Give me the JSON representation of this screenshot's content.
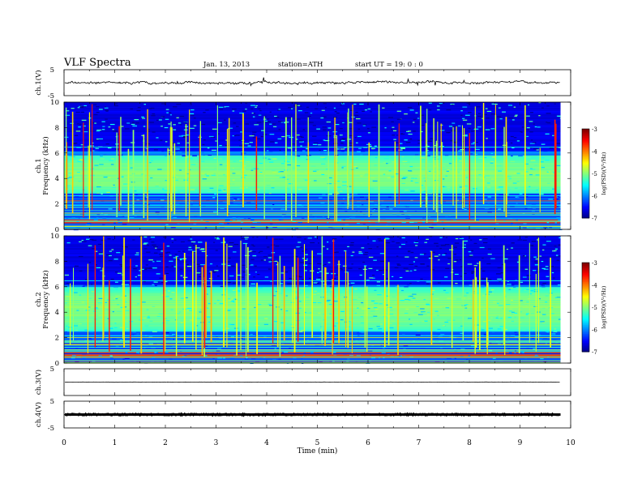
{
  "header": {
    "title": "VLF  Spectra",
    "date": "Jan. 13, 2013",
    "station": "station=ATH",
    "start": "start  UT =   19: 0  : 0"
  },
  "chart_data": [
    {
      "type": "line",
      "panel": "ch1-voltage",
      "ylabel": "ch.1(V)",
      "ylim": [
        -5,
        5
      ],
      "yticks": [
        "5",
        "-5"
      ],
      "baseline": 0,
      "color": "#000000"
    },
    {
      "type": "heatmap",
      "panel": "ch1-spectrogram",
      "ylabel": "ch.1\nFrequency (kHz)",
      "ylabel_lines": [
        "ch.1",
        "Frequency (kHz)"
      ],
      "ylim": [
        0,
        10
      ],
      "yticks": [
        "0",
        "2",
        "4",
        "6",
        "8",
        "10"
      ],
      "xlim": [
        0,
        9.8
      ],
      "colorbar": {
        "label": "log(PSD)(V²/Hz)",
        "range": [
          -7,
          -3
        ],
        "ticks": [
          "-3",
          "-4",
          "-5",
          "-6",
          "-7"
        ]
      },
      "features": {
        "noise_band_khz": [
          2.8,
          5.8
        ],
        "bright_band_khz": [
          0.5,
          0.8
        ],
        "dark_band_khz": [
          6.2,
          10
        ]
      }
    },
    {
      "type": "heatmap",
      "panel": "ch2-spectrogram",
      "ylabel": "ch.2\nFrequency (kHz)",
      "ylabel_lines": [
        "ch.2",
        "Frequency (kHz)"
      ],
      "ylim": [
        0,
        10
      ],
      "yticks": [
        "0",
        "2",
        "4",
        "6",
        "8",
        "10"
      ],
      "xlim": [
        0,
        9.8
      ],
      "colorbar": {
        "label": "log(PSD)(V²/Hz)",
        "range": [
          -7,
          -3
        ],
        "ticks": [
          "-3",
          "-4",
          "-5",
          "-6",
          "-7"
        ]
      },
      "features": {
        "noise_band_khz": [
          2.5,
          6.0
        ],
        "bright_band_khz": [
          0.4,
          0.9
        ],
        "dark_band_khz": [
          6.2,
          10
        ]
      }
    },
    {
      "type": "line",
      "panel": "ch3-voltage",
      "ylabel": "ch.3(V)",
      "ylim": [
        -5,
        5
      ],
      "yticks": [
        "5"
      ],
      "baseline": 0,
      "color": "#000000"
    },
    {
      "type": "line",
      "panel": "ch4-voltage",
      "ylabel": "ch.4(V)",
      "ylim": [
        -5,
        5
      ],
      "yticks": [
        "5",
        "-5"
      ],
      "baseline": 0,
      "color": "#000000"
    }
  ],
  "x_axis": {
    "label": "Time  (min)",
    "xlim": [
      0,
      10
    ],
    "ticks": [
      "0",
      "1",
      "2",
      "3",
      "4",
      "5",
      "6",
      "7",
      "8",
      "9",
      "10"
    ]
  }
}
